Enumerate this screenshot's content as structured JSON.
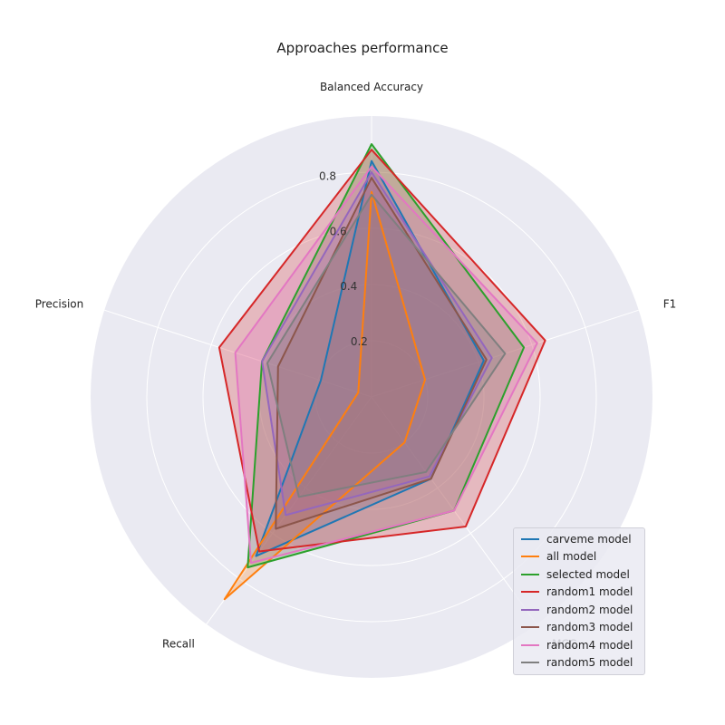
{
  "chart_data": {
    "type": "radar",
    "title": "Approaches performance",
    "axes": [
      "Balanced Accuracy",
      "F1",
      "MCC",
      "Recall",
      "Precision"
    ],
    "radial_ticks": [
      0.2,
      0.4,
      0.6,
      0.8
    ],
    "radial_tick_labels": [
      "0.2",
      "0.4",
      "0.6",
      "0.8"
    ],
    "rlim": [
      0,
      1.0
    ],
    "grid": true,
    "legend_position": "lower-right",
    "series": [
      {
        "name": "carveme model",
        "color": "#1f77b4",
        "values": [
          0.84,
          0.42,
          0.36,
          0.7,
          0.19
        ]
      },
      {
        "name": "all model",
        "color": "#ff7f0e",
        "values": [
          0.73,
          0.2,
          0.2,
          0.89,
          0.05
        ]
      },
      {
        "name": "selected model",
        "color": "#2ca02c",
        "values": [
          0.9,
          0.57,
          0.5,
          0.75,
          0.41
        ]
      },
      {
        "name": "random1 model",
        "color": "#d62728",
        "values": [
          0.88,
          0.65,
          0.57,
          0.68,
          0.57
        ]
      },
      {
        "name": "random2 model",
        "color": "#9467bd",
        "values": [
          0.8,
          0.45,
          0.35,
          0.52,
          0.41
        ]
      },
      {
        "name": "random3 model",
        "color": "#8c564b",
        "values": [
          0.78,
          0.43,
          0.36,
          0.58,
          0.35
        ]
      },
      {
        "name": "random4 model",
        "color": "#e377c2",
        "values": [
          0.82,
          0.62,
          0.5,
          0.73,
          0.51
        ]
      },
      {
        "name": "random5 model",
        "color": "#7f7f7f",
        "values": [
          0.72,
          0.5,
          0.33,
          0.44,
          0.39
        ]
      }
    ]
  }
}
